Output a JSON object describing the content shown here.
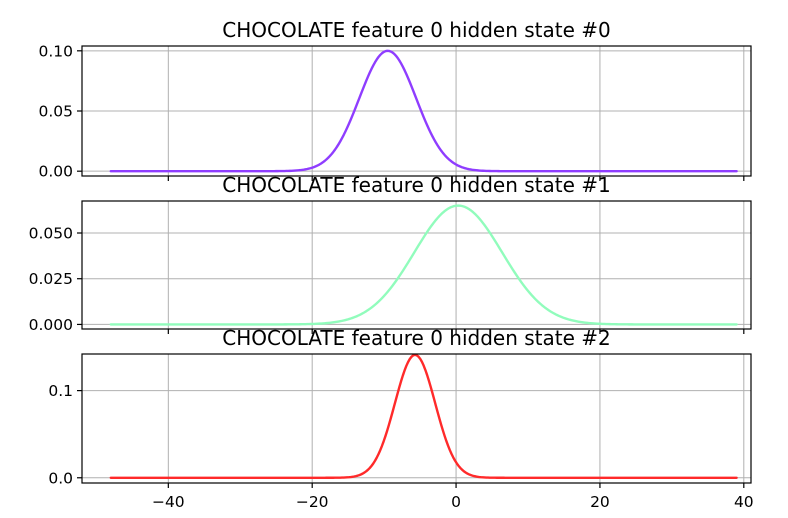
{
  "chart_data": [
    {
      "type": "line",
      "title": "CHOCOLATE feature 0 hidden state #0",
      "xlim": [
        -52,
        41
      ],
      "ylim": [
        -0.004,
        0.104
      ],
      "xticks": [
        -40,
        -20,
        0,
        20,
        40
      ],
      "xtick_labels": [
        "",
        "",
        "",
        "",
        ""
      ],
      "yticks": [
        0.0,
        0.05,
        0.1
      ],
      "ytick_labels": [
        "0.00",
        "0.05",
        "0.10"
      ],
      "grid": true,
      "series": [
        {
          "color": "#8f3dff",
          "distribution": "gaussian",
          "x_range": [
            -48,
            39
          ],
          "mean": -9.5,
          "std": 3.95,
          "peak": 0.1
        }
      ]
    },
    {
      "type": "line",
      "title": "CHOCOLATE feature 0 hidden state #1",
      "xlim": [
        -52,
        41
      ],
      "ylim": [
        -0.0025,
        0.0675
      ],
      "xticks": [
        -40,
        -20,
        0,
        20,
        40
      ],
      "xtick_labels": [
        "",
        "",
        "",
        "",
        ""
      ],
      "yticks": [
        0.0,
        0.025,
        0.05
      ],
      "ytick_labels": [
        "0.000",
        "0.025",
        "0.050"
      ],
      "grid": true,
      "series": [
        {
          "color": "#91fcbc",
          "distribution": "gaussian",
          "x_range": [
            -48,
            39
          ],
          "mean": 0.3,
          "std": 6.1,
          "peak": 0.065
        }
      ]
    },
    {
      "type": "line",
      "title": "CHOCOLATE feature 0 hidden state #2",
      "xlim": [
        -52,
        41
      ],
      "ylim": [
        -0.006,
        0.142
      ],
      "xticks": [
        -40,
        -20,
        0,
        20,
        40
      ],
      "xtick_labels": [
        "−40",
        "−20",
        "0",
        "20",
        "40"
      ],
      "yticks": [
        0.0,
        0.1
      ],
      "ytick_labels": [
        "0.0",
        "0.1"
      ],
      "grid": true,
      "series": [
        {
          "color": "#ff2a2a",
          "distribution": "gaussian",
          "x_range": [
            -48,
            39
          ],
          "mean": -5.7,
          "std": 2.8,
          "peak": 0.141
        }
      ]
    }
  ]
}
